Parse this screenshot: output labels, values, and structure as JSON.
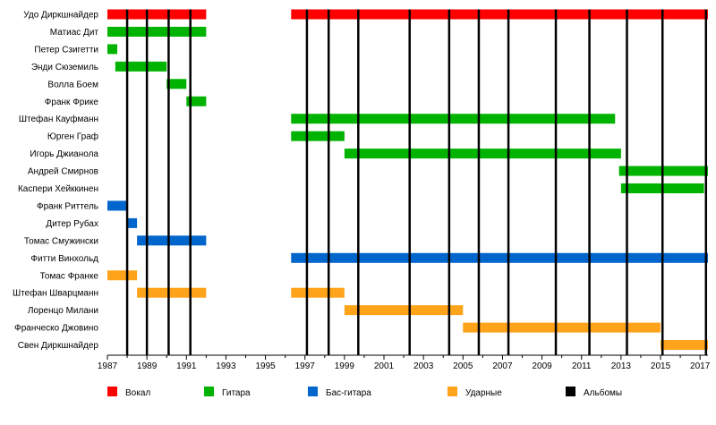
{
  "chart_data": {
    "type": "timeline",
    "title": "",
    "xlabel": "",
    "ylabel": "",
    "xlim": [
      1987,
      2017.4
    ],
    "x_ticks": [
      1987,
      1989,
      1991,
      1993,
      1995,
      1997,
      1999,
      2001,
      2003,
      2005,
      2007,
      2009,
      2011,
      2013,
      2015,
      2017
    ],
    "roles": [
      {
        "key": "vocal",
        "name": "Вокал",
        "color": "#ff0000"
      },
      {
        "key": "guitar",
        "name": "Гитара",
        "color": "#00b300"
      },
      {
        "key": "bass",
        "name": "Бас-гитара",
        "color": "#0066cc"
      },
      {
        "key": "drums",
        "name": "Ударные",
        "color": "#ffa31a"
      },
      {
        "key": "albums",
        "name": "Альбомы",
        "color": "#000000"
      }
    ],
    "members": [
      {
        "name": "Удо Диркшнайдер",
        "role": "vocal",
        "periods": [
          [
            1987,
            1992
          ],
          [
            1996.3,
            2017.4
          ]
        ]
      },
      {
        "name": "Матиас Дит",
        "role": "guitar",
        "periods": [
          [
            1987,
            1992
          ]
        ]
      },
      {
        "name": "Петер Сзигетти",
        "role": "guitar",
        "periods": [
          [
            1987,
            1987.5
          ]
        ]
      },
      {
        "name": "Энди Сюземиль",
        "role": "guitar",
        "periods": [
          [
            1987.4,
            1990
          ]
        ]
      },
      {
        "name": "Волла Боем",
        "role": "guitar",
        "periods": [
          [
            1990,
            1991
          ]
        ]
      },
      {
        "name": "Франк Фрике",
        "role": "guitar",
        "periods": [
          [
            1991,
            1992
          ]
        ]
      },
      {
        "name": "Штефан Кауфманн",
        "role": "guitar",
        "periods": [
          [
            1996.3,
            2012.7
          ]
        ]
      },
      {
        "name": "Юрген Граф",
        "role": "guitar",
        "periods": [
          [
            1996.3,
            1999
          ]
        ]
      },
      {
        "name": "Игорь Джианола",
        "role": "guitar",
        "periods": [
          [
            1999,
            2013
          ]
        ]
      },
      {
        "name": "Андрей Смирнов",
        "role": "guitar",
        "periods": [
          [
            2012.9,
            2017.4
          ]
        ]
      },
      {
        "name": "Каспери Хейккинен",
        "role": "guitar",
        "periods": [
          [
            2013,
            2017.2
          ]
        ]
      },
      {
        "name": "Франк Риттель",
        "role": "bass",
        "periods": [
          [
            1987,
            1988
          ]
        ]
      },
      {
        "name": "Дитер Рубах",
        "role": "bass",
        "periods": [
          [
            1988,
            1988.5
          ]
        ]
      },
      {
        "name": "Томас Смужински",
        "role": "bass",
        "periods": [
          [
            1988.5,
            1992
          ]
        ]
      },
      {
        "name": "Фитти Винхольд",
        "role": "bass",
        "periods": [
          [
            1996.3,
            2017.4
          ]
        ]
      },
      {
        "name": "Томас Франке",
        "role": "drums",
        "periods": [
          [
            1987,
            1988.5
          ]
        ]
      },
      {
        "name": "Штефан Шварцманн",
        "role": "drums",
        "periods": [
          [
            1988.5,
            1992
          ],
          [
            1996.3,
            1999
          ]
        ]
      },
      {
        "name": "Лоренцо Милани",
        "role": "drums",
        "periods": [
          [
            1999,
            2005
          ]
        ]
      },
      {
        "name": "Франческо Джовино",
        "role": "drums",
        "periods": [
          [
            2005,
            2015
          ]
        ]
      },
      {
        "name": "Свен Диркшнайдер",
        "role": "drums",
        "periods": [
          [
            2015,
            2017.4
          ]
        ]
      }
    ],
    "albums": [
      1988,
      1989,
      1990.1,
      1991.2,
      1997.1,
      1998.2,
      1999.7,
      2002.3,
      2004.3,
      2005.8,
      2007.3,
      2009.7,
      2011.4,
      2013.3,
      2015.1,
      2017.3
    ]
  }
}
